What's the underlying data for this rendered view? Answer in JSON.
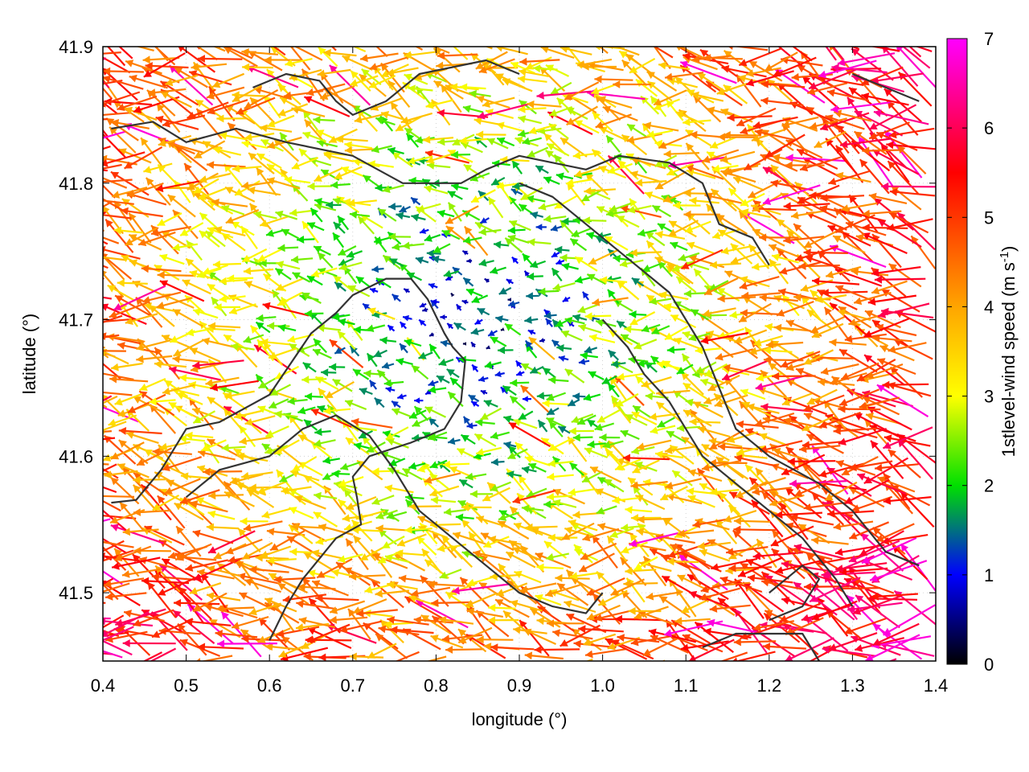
{
  "chart_data": {
    "type": "quiver",
    "xlabel": "longitude (°)",
    "ylabel": "latitude (°)",
    "colorbar_label_main": "1stlevel-wind speed (m s",
    "colorbar_label_sup": "-1",
    "colorbar_label_end": ")",
    "xlim": [
      0.4,
      1.4
    ],
    "ylim": [
      41.45,
      41.9
    ],
    "x_ticks": [
      "0.4",
      "0.5",
      "0.6",
      "0.7",
      "0.8",
      "0.9",
      "1.0",
      "1.1",
      "1.2",
      "1.3",
      "1.4"
    ],
    "y_ticks": [
      "41.5",
      "41.6",
      "41.7",
      "41.8",
      "41.9"
    ],
    "colorbar_range": [
      0,
      7
    ],
    "colorbar_ticks": [
      "0",
      "1",
      "2",
      "3",
      "4",
      "5",
      "6",
      "7"
    ],
    "colormap": [
      "#000000",
      "#0000ff",
      "#00e000",
      "#ffff00",
      "#ffa500",
      "#ff0000",
      "#ff00ff"
    ],
    "colormap_stops": [
      0,
      1,
      2,
      3,
      4,
      5.5,
      7
    ],
    "grid": true,
    "contour_color": "#333333",
    "wind_field": {
      "lon_range": [
        0.405,
        1.395
      ],
      "lat_range": [
        41.455,
        41.895
      ],
      "grid_step_deg": 0.0165,
      "prevailing_direction": "from east-southeast",
      "calm_center": [
        0.85,
        41.7
      ],
      "speed_min": 0.1,
      "speed_max": 6.8
    },
    "contours": [
      [
        [
          0.41,
          41.566
        ],
        [
          0.44,
          41.568
        ],
        [
          0.47,
          41.59
        ],
        [
          0.5,
          41.62
        ],
        [
          0.54,
          41.625
        ],
        [
          0.6,
          41.645
        ],
        [
          0.65,
          41.69
        ],
        [
          0.68,
          41.705
        ],
        [
          0.7,
          41.718
        ],
        [
          0.74,
          41.73
        ],
        [
          0.77,
          41.73
        ],
        [
          0.79,
          41.715
        ],
        [
          0.81,
          41.69
        ],
        [
          0.82,
          41.68
        ],
        [
          0.835,
          41.67
        ],
        [
          0.83,
          41.64
        ],
        [
          0.81,
          41.62
        ],
        [
          0.77,
          41.61
        ],
        [
          0.72,
          41.6
        ],
        [
          0.7,
          41.585
        ],
        [
          0.705,
          41.57
        ],
        [
          0.71,
          41.55
        ],
        [
          0.68,
          41.54
        ],
        [
          0.64,
          41.51
        ],
        [
          0.62,
          41.49
        ],
        [
          0.6,
          41.465
        ]
      ],
      [
        [
          0.41,
          41.84
        ],
        [
          0.46,
          41.845
        ],
        [
          0.5,
          41.83
        ],
        [
          0.56,
          41.84
        ],
        [
          0.62,
          41.83
        ],
        [
          0.7,
          41.82
        ],
        [
          0.76,
          41.8
        ],
        [
          0.8,
          41.8
        ],
        [
          0.83,
          41.8
        ],
        [
          0.86,
          41.81
        ],
        [
          0.9,
          41.82
        ],
        [
          0.94,
          41.815
        ],
        [
          0.98,
          41.81
        ],
        [
          1.02,
          41.82
        ],
        [
          1.08,
          41.815
        ],
        [
          1.12,
          41.8
        ],
        [
          1.14,
          41.77
        ],
        [
          1.18,
          41.76
        ],
        [
          1.2,
          41.74
        ]
      ],
      [
        [
          0.58,
          41.87
        ],
        [
          0.62,
          41.88
        ],
        [
          0.66,
          41.875
        ],
        [
          0.68,
          41.86
        ],
        [
          0.7,
          41.85
        ],
        [
          0.74,
          41.86
        ],
        [
          0.78,
          41.88
        ],
        [
          0.82,
          41.885
        ],
        [
          0.86,
          41.89
        ],
        [
          0.9,
          41.88
        ]
      ],
      [
        [
          0.5,
          41.57
        ],
        [
          0.54,
          41.59
        ],
        [
          0.6,
          41.6
        ],
        [
          0.64,
          41.62
        ],
        [
          0.68,
          41.63
        ],
        [
          0.72,
          41.615
        ],
        [
          0.75,
          41.59
        ],
        [
          0.78,
          41.56
        ],
        [
          0.82,
          41.54
        ],
        [
          0.86,
          41.52
        ],
        [
          0.9,
          41.5
        ],
        [
          0.94,
          41.49
        ],
        [
          0.98,
          41.485
        ],
        [
          1.0,
          41.5
        ]
      ],
      [
        [
          1.0,
          41.7
        ],
        [
          1.03,
          41.68
        ],
        [
          1.05,
          41.66
        ],
        [
          1.08,
          41.64
        ],
        [
          1.1,
          41.62
        ],
        [
          1.12,
          41.6
        ],
        [
          1.16,
          41.58
        ],
        [
          1.2,
          41.56
        ],
        [
          1.24,
          41.54
        ],
        [
          1.28,
          41.51
        ],
        [
          1.3,
          41.49
        ]
      ],
      [
        [
          0.9,
          41.8
        ],
        [
          0.94,
          41.79
        ],
        [
          0.98,
          41.77
        ],
        [
          1.02,
          41.75
        ],
        [
          1.06,
          41.73
        ],
        [
          1.08,
          41.72
        ],
        [
          1.1,
          41.7
        ],
        [
          1.12,
          41.68
        ],
        [
          1.14,
          41.65
        ],
        [
          1.16,
          41.62
        ],
        [
          1.2,
          41.6
        ],
        [
          1.26,
          41.58
        ],
        [
          1.3,
          41.56
        ],
        [
          1.34,
          41.53
        ],
        [
          1.38,
          41.52
        ]
      ],
      [
        [
          1.2,
          41.5
        ],
        [
          1.24,
          41.52
        ],
        [
          1.26,
          41.51
        ],
        [
          1.24,
          41.49
        ],
        [
          1.2,
          41.48
        ]
      ],
      [
        [
          1.12,
          41.46
        ],
        [
          1.16,
          41.47
        ],
        [
          1.2,
          41.47
        ],
        [
          1.24,
          41.47
        ],
        [
          1.26,
          41.45
        ]
      ],
      [
        [
          1.3,
          41.88
        ],
        [
          1.34,
          41.87
        ],
        [
          1.38,
          41.86
        ]
      ]
    ]
  }
}
